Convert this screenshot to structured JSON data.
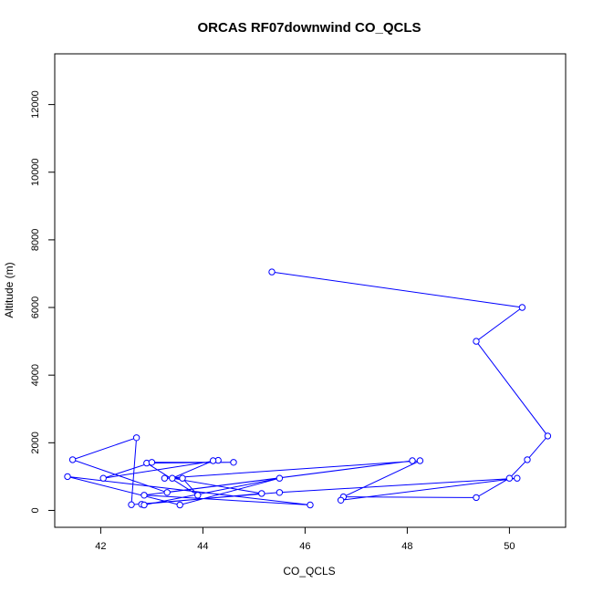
{
  "chart_data": {
    "type": "line",
    "title": "ORCAS RF07downwind CO_QCLS",
    "xlabel": "CO_QCLS",
    "ylabel": "Altitude (m)",
    "xlim": [
      41.1,
      51.1
    ],
    "ylim": [
      -500,
      13500
    ],
    "x_ticks": [
      "42",
      "44",
      "46",
      "48",
      "50"
    ],
    "y_ticks": [
      "0",
      "2000",
      "4000",
      "6000",
      "8000",
      "10000",
      "12000"
    ],
    "series_color": "#0000ff",
    "x": [
      45.35,
      50.25,
      49.35,
      50.75,
      50.35,
      50.0,
      49.35,
      46.75,
      48.25,
      43.25,
      43.6,
      43.9,
      42.9,
      44.6,
      43.0,
      42.05,
      44.3,
      44.2,
      43.4,
      45.15,
      42.8,
      42.85,
      45.5,
      43.55,
      41.35,
      46.1,
      42.85,
      48.1,
      43.3,
      41.45,
      42.7,
      42.6,
      45.5,
      50.15,
      46.7
    ],
    "y": [
      7050,
      6000,
      5000,
      2200,
      1500,
      950,
      380,
      400,
      1470,
      950,
      950,
      450,
      1400,
      1420,
      1420,
      950,
      1480,
      1470,
      950,
      500,
      180,
      160,
      950,
      160,
      1000,
      160,
      450,
      1470,
      530,
      1500,
      2150,
      170,
      530,
      950,
      300
    ]
  }
}
